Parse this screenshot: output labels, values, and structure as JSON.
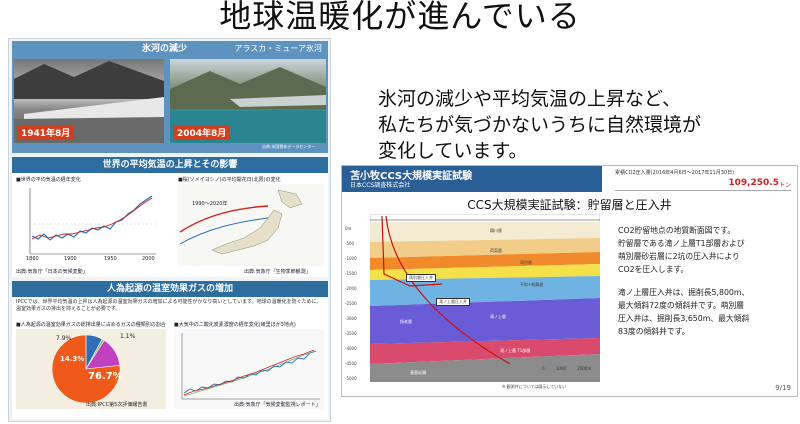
{
  "title": "地球温暖化が進んでいる",
  "poster": {
    "glacier": {
      "title": "氷河の減少",
      "location": "アラスカ・ミューア氷河",
      "year_old": "1941年8月",
      "year_new": "2004年8月",
      "credit": "出典:米国雪氷データセンター"
    },
    "temperature": {
      "title": "世界の平均気温の上昇とその影響",
      "left_caption": "■世界の平均気温の経年変化",
      "right_caption": "■桜(ソメイヨシノ)の平均開花日(北限)の変化",
      "years": [
        "1860",
        "1900",
        "1950",
        "2000"
      ],
      "right_years": "1990〜2020年",
      "left_source": "出典:気象庁「日本の気候変動」",
      "right_source": "出典:気象庁「生物季節観測」"
    },
    "ghg": {
      "title": "人為起源の温室効果ガスの増加",
      "text": "IPCCでは、世界平均気温の上昇は人為起源の温室効果ガスの増加による可能性がかなり高いとしています。地球の温暖化を防ぐために、温室効果ガスの排出を抑えることが必要です。",
      "pie_caption": "■人為起源の温室効果ガスの総排出量に占めるガスの種類別の割合",
      "line_caption": "■大気中の二酸化炭素濃度の経年変化(綾里ほか3地点)",
      "pie_labels": [
        "7.9%",
        "1.1%",
        "14.3%",
        "76.7%"
      ],
      "pie_colors": [
        "#2f6db5",
        "#7ab55c",
        "#c040c0",
        "#ef5a1a"
      ],
      "pie_values": [
        7.9,
        1.1,
        14.3,
        76.7
      ],
      "pie_source": "出典:IPCC第5次評価報告書",
      "line_source": "出典:気象庁「気候変動監視レポート」"
    }
  },
  "right_text": [
    "氷河の減少や平均気温の上昇など、",
    "私たちが気づかないうちに自然環境が",
    "変化しています。"
  ],
  "slide": {
    "header_title": "苫小牧CCS大規模実証試験",
    "header_sub": "日本CCS調査株式会社",
    "co2_label": "累積CO2圧入量(2016年4月6日〜2017年11月30日)",
    "co2_value": "109,250.5",
    "co2_unit": "トン",
    "title": "CCS大規模実証試験：貯留層と圧入井",
    "desc": [
      "CO2貯留地点の地質断面図です。",
      "貯留層である滝ノ上層T1部層および",
      "萌別層砂岩層に2坑の圧入井により",
      "CO2を圧入します。",
      "",
      "滝ノ上層圧入井は、掘削長5,800m、",
      "最大傾斜72度の傾斜井です。萌別層",
      "圧入井は、掘削長3,650m、最大傾斜",
      "83度の傾斜井です。"
    ],
    "depths": [
      "0m",
      "-500",
      "-1000",
      "-1500",
      "-2000",
      "-2500",
      "-3000",
      "-3500",
      "-4000",
      "-4500",
      "-5000"
    ],
    "layer_labels": [
      "鵡川層",
      "荷菜層",
      "萌別層",
      "平取+軽舞層",
      "振老層",
      "滝ノ上層",
      "滝ノ上層 T1部層",
      "基盤岩類"
    ],
    "well_labels": [
      "萌別層圧入井",
      "滝ノ上層圧入井"
    ],
    "scale": [
      "0",
      "1000",
      "2000m"
    ],
    "footnote": "※ 観測井については図示していない",
    "page": "9/19"
  }
}
